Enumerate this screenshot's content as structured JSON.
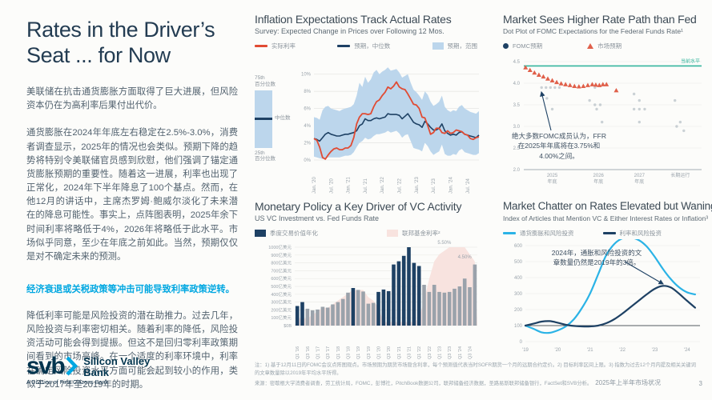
{
  "page": {
    "footer_label": "2025年上半年市场状况",
    "page_number": "3",
    "footnote1": "注：1) 基于12月11日的FOMC会议点阵图观点。市场预期为期货市场隐含利率，每个预测值代表当时SOFR期货一个月的远期合约定价。2) 目标利率区间上限。3) 指数为过去12个月内提及相关关键词的文章数量除以2019年平均水平所得。",
    "footnote2": "来源：密歇根大学消费者调查，劳工统计局，FOMC，彭博社，PitchBook数据公司，联邦储备经济数据，圣路易斯联邦储备银行，FactSet和SVB分析。"
  },
  "left": {
    "title_line1": "Rates in the Driver’s",
    "title_line2": "Seat ... for Now",
    "para1": "美联储在抗击通货膨胀方面取得了巨大进展，但风险资本仍在为高利率后果付出代价。",
    "para2": "通货膨胀在2024年年底左右稳定在2.5%-3.0%，消费者调查显示，2025年的情况也会类似。预期下降的趋势将特别令美联储官员感到欣慰，他们强调了锚定通货膨胀预期的重要性。随着这一进展，利率也出现了正常化，2024年下半年降息了100个基点。然而，在他12月的讲话中，主席杰罗姆·鲍威尔淡化了未来潜在的降息可能性。事实上，点阵图表明，2025年余下时间利率将略低于4%，2026年将略低于此水平。市场似乎同意，至少在年底之前如此。当然，预期仅仅是对不确定未来的预测。",
    "highlight": "经济衰退或关税政策等冲击可能导致利率政策逆转。",
    "para3": "降低利率可能是风险投资的潜在助推力。过去几年，风险投资与利率密切相关。随着利率的降低，风险投资活动可能会得到提振。但这不是回归零利率政策期间看到的市场高峰。在一个适度的利率环境中，利率在确定风险投资水平方面可能会起到较小的作用，类似于2017年至2019年的时期。",
    "logo": {
      "mark": "svb",
      "name_line1": "Silicon Valley",
      "name_line2": "Bank",
      "tagline": "A Division of First Citizens Bank"
    }
  },
  "chart_data": [
    {
      "type": "line",
      "title": "Inflation Expectations Track Actual Rates",
      "subtitle": "Survey: Expected Change in Prices over Following 12 Mos.",
      "legend": [
        {
          "label": "实际利率",
          "swatch": "line",
          "color": "#e14b33"
        },
        {
          "label": "预期，中位数",
          "swatch": "line",
          "color": "#1e4164"
        },
        {
          "label": "预期，范围",
          "swatch": "box",
          "color": "#bcd6ec"
        }
      ],
      "mini_legend": {
        "p75": "75th",
        "p75_sub": "百分位数",
        "median": "中位数",
        "p25": "25th",
        "p25_sub": "百分位数"
      },
      "ylabel_format": "percent",
      "yticks": [
        0,
        2,
        4,
        6,
        8,
        10
      ],
      "ylim": [
        0,
        11
      ],
      "xticks": [
        {
          "i": 0,
          "label": "Jan. '20"
        },
        {
          "i": 6,
          "label": "Jul. '20"
        },
        {
          "i": 12,
          "label": "Jan. '21"
        },
        {
          "i": 18,
          "label": "Jul. '21"
        },
        {
          "i": 24,
          "label": "Jan. '22"
        },
        {
          "i": 30,
          "label": "Jul. '22"
        },
        {
          "i": 36,
          "label": "Jan. '23"
        },
        {
          "i": 42,
          "label": "Jul. '23"
        },
        {
          "i": 48,
          "label": "Jan. '24"
        },
        {
          "i": 54,
          "label": "Jul. '24"
        }
      ],
      "actual": [
        2.5,
        2.3,
        1.5,
        0.3,
        0.1,
        0.6,
        1.0,
        1.3,
        1.4,
        1.2,
        1.2,
        1.4,
        1.4,
        1.7,
        2.6,
        4.2,
        5.0,
        5.4,
        5.4,
        5.3,
        5.4,
        6.2,
        6.8,
        7.0,
        7.5,
        7.9,
        8.5,
        8.3,
        8.6,
        9.1,
        8.5,
        8.3,
        8.2,
        7.7,
        7.1,
        6.5,
        6.4,
        6.0,
        5.0,
        4.9,
        4.0,
        3.0,
        3.2,
        3.7,
        3.7,
        3.2,
        3.1,
        3.4,
        3.1,
        3.2,
        3.5,
        3.4,
        3.3,
        3.0,
        2.9,
        2.5,
        2.4,
        2.6,
        2.7
      ],
      "median": [
        2.5,
        2.4,
        2.2,
        2.6,
        3.0,
        3.2,
        3.0,
        2.9,
        2.8,
        2.8,
        2.9,
        3.0,
        3.0,
        3.1,
        3.2,
        3.4,
        4.0,
        4.2,
        4.8,
        4.6,
        4.6,
        4.8,
        4.9,
        4.8,
        4.9,
        5.0,
        5.4,
        5.3,
        5.3,
        5.3,
        5.2,
        4.8,
        5.1,
        5.4,
        4.9,
        4.4,
        4.2,
        4.1,
        3.8,
        4.5,
        4.2,
        3.8,
        3.5,
        3.5,
        3.7,
        4.2,
        3.4,
        3.1,
        2.9,
        3.0,
        2.9,
        3.2,
        3.3,
        3.0,
        2.9,
        2.8,
        2.7,
        2.6,
        2.9
      ],
      "p75": [
        5.0,
        4.9,
        4.7,
        5.8,
        6.2,
        6.3,
        6.0,
        5.9,
        5.8,
        5.7,
        5.9,
        6.0,
        6.1,
        6.2,
        6.5,
        7.5,
        9.0,
        8.5,
        9.7,
        9.0,
        9.4,
        10.2,
        10.5,
        10.0,
        10.3,
        10.5,
        10.8,
        10.4,
        10.5,
        10.6,
        10.2,
        9.6,
        9.8,
        10.0,
        9.0,
        8.2,
        7.9,
        7.5,
        7.0,
        8.0,
        7.6,
        6.8,
        6.3,
        6.5,
        6.8,
        7.5,
        6.2,
        5.8,
        5.6,
        5.8,
        5.7,
        6.2,
        6.4,
        6.0,
        5.8,
        5.6,
        5.5,
        5.4,
        5.7
      ],
      "p25": [
        0.4,
        0.3,
        0.2,
        0.1,
        0.2,
        0.3,
        0.3,
        0.3,
        0.3,
        0.3,
        0.4,
        0.5,
        0.5,
        0.6,
        0.9,
        1.5,
        2.0,
        2.2,
        2.6,
        2.4,
        2.5,
        2.8,
        3.0,
        3.0,
        3.1,
        3.2,
        3.4,
        3.2,
        3.3,
        3.4,
        3.1,
        2.6,
        2.9,
        3.0,
        2.2,
        1.4,
        1.3,
        1.2,
        1.0,
        2.0,
        1.6,
        1.0,
        0.6,
        0.8,
        1.0,
        1.8,
        0.7,
        0.5,
        0.5,
        0.7,
        0.6,
        1.1,
        1.3,
        0.9,
        0.8,
        0.7,
        0.6,
        0.6,
        0.8
      ],
      "colors": {
        "actual": "#e14b33",
        "median": "#1e4164",
        "range": "#bcd6ec"
      }
    },
    {
      "type": "bar",
      "title": "Monetary Policy a Key Driver of VC Activity",
      "subtitle": "US VC Investment vs. Fed Funds Rate",
      "legend": [
        {
          "label": "季度交易价值年化",
          "swatch": "box",
          "color": "#1e4164"
        },
        {
          "label": "联邦基金利率²",
          "swatch": "box",
          "color": "#f8e3df"
        }
      ],
      "categories": [
        "Q1 '16",
        "Q2 '16",
        "Q3 '16",
        "Q4 '16",
        "Q1 '17",
        "Q2 '17",
        "Q3 '17",
        "Q4 '17",
        "Q1 '18",
        "Q2 '18",
        "Q3 '18",
        "Q4 '18",
        "Q1 '19",
        "Q2 '19",
        "Q3 '19",
        "Q4 '19",
        "Q1 '20",
        "Q2 '20",
        "Q3 '20",
        "Q4 '20",
        "Q1 '21",
        "Q2 '21",
        "Q3 '21",
        "Q4 '21",
        "Q1 '22",
        "Q2 '22",
        "Q3 '22",
        "Q4 '22",
        "Q1 '23",
        "Q2 '23",
        "Q3 '23",
        "Q4 '23",
        "Q1 '24",
        "Q2 '24",
        "Q3 '24",
        "Q4 '24"
      ],
      "values": [
        250,
        300,
        215,
        195,
        205,
        240,
        230,
        270,
        300,
        340,
        420,
        480,
        455,
        435,
        280,
        290,
        430,
        460,
        440,
        780,
        820,
        890,
        1000,
        800,
        760,
        520,
        430,
        520,
        430,
        420,
        430,
        470,
        500,
        600,
        490,
        780
      ],
      "highlight_indices": [
        0,
        1,
        11,
        16,
        17,
        18,
        19,
        20,
        21,
        22,
        23,
        24
      ],
      "fed_funds": [
        0.5,
        0.5,
        0.5,
        0.75,
        1.0,
        1.25,
        1.25,
        1.5,
        1.75,
        2.0,
        2.25,
        2.5,
        2.5,
        2.5,
        2.0,
        1.75,
        1.25,
        0.25,
        0.25,
        0.25,
        0.25,
        0.25,
        0.25,
        0.25,
        0.5,
        1.75,
        3.25,
        4.5,
        5.0,
        5.25,
        5.5,
        5.5,
        5.5,
        5.5,
        5.0,
        4.5
      ],
      "fed_ylim": [
        0,
        5.5
      ],
      "ylabels_bottom_to_top": [
        "$0B",
        "100亿美元",
        "200亿美元",
        "300亿美元",
        "400亿美元",
        "500亿美元",
        "600亿美元",
        "700亿美元",
        "800亿美元",
        "900亿美元",
        "1000亿美元"
      ],
      "ylim": [
        0,
        1000
      ],
      "xtick_every": 2,
      "annotations": [
        {
          "label": "5.50%",
          "i": 29,
          "v": 5.5
        },
        {
          "label": "4.50%",
          "i": 33,
          "v": 4.5
        }
      ],
      "colors": {
        "bar": "#9aa2ab",
        "bar_highlight": "#1e4164",
        "area": "#f8e3df"
      }
    },
    {
      "type": "scatter",
      "title": "Market Sees Higher Rate Path than Fed",
      "subtitle": "Dot Plot of FOMC Expectations for the Federal Funds Rate¹",
      "legend": [
        {
          "label": "FOMC预期",
          "swatch": "dot",
          "color": "#1e4164"
        },
        {
          "label": "市场预期",
          "swatch": "tri",
          "color": "#e0604a"
        }
      ],
      "yticks": [
        4.5,
        4.0,
        3.5,
        3.0,
        2.5,
        2.0
      ],
      "ylim": [
        2.0,
        4.5
      ],
      "current_level": {
        "value": 4.4,
        "label": "当前水平"
      },
      "xgroups": [
        {
          "x": 0.16,
          "line1": "2025",
          "line2": "年底"
        },
        {
          "x": 0.42,
          "line1": "2026",
          "line2": "年底"
        },
        {
          "x": 0.65,
          "line1": "2027",
          "line2": "年底"
        },
        {
          "x": 0.88,
          "line1": "长期运行",
          "line2": ""
        }
      ],
      "market": [
        [
          0.01,
          4.36
        ],
        [
          0.035,
          4.3
        ],
        [
          0.06,
          4.24
        ],
        [
          0.085,
          4.19
        ],
        [
          0.11,
          4.15
        ],
        [
          0.135,
          4.1
        ],
        [
          0.16,
          4.06
        ],
        [
          0.185,
          4.02
        ],
        [
          0.21,
          3.99
        ],
        [
          0.235,
          3.97
        ],
        [
          0.26,
          3.95
        ],
        [
          0.285,
          3.93
        ],
        [
          0.31,
          3.92
        ],
        [
          0.335,
          3.93
        ],
        [
          0.36,
          3.95
        ],
        [
          0.385,
          3.97
        ],
        [
          0.405,
          3.96
        ],
        [
          0.425,
          3.95
        ],
        [
          0.445,
          3.97
        ],
        [
          0.465,
          3.97
        ],
        [
          0.52,
          3.83
        ]
      ],
      "fomc_dots": [
        [
          0.1,
          3.9
        ],
        [
          0.125,
          3.9
        ],
        [
          0.15,
          3.9
        ],
        [
          0.175,
          3.9
        ],
        [
          0.2,
          3.9
        ],
        [
          0.13,
          3.65
        ],
        [
          0.16,
          3.4
        ],
        [
          0.4,
          3.9
        ],
        [
          0.37,
          3.6
        ],
        [
          0.4,
          3.5
        ],
        [
          0.43,
          3.5
        ],
        [
          0.41,
          3.4
        ],
        [
          0.44,
          3.1
        ],
        [
          0.62,
          3.75
        ],
        [
          0.65,
          3.6
        ],
        [
          0.62,
          3.4
        ],
        [
          0.65,
          3.4
        ],
        [
          0.68,
          3.4
        ],
        [
          0.65,
          3.1
        ],
        [
          0.85,
          3.6
        ],
        [
          0.88,
          3.1
        ],
        [
          0.86,
          3.0
        ],
        [
          0.9,
          2.9
        ]
      ],
      "annotation": "绝大多数FOMC成员认为，FFR在2025年年底将在3.75%和4.00%之间。",
      "colors": {
        "dot": "#a9b4bd",
        "triangle": "#e0604a",
        "current": "#35b59d"
      }
    },
    {
      "type": "line",
      "title": "Market Chatter on Rates Elevated but Waning",
      "subtitle": "Index of Articles that Mention VC & Either Interest Rates or Inflation³",
      "legend": [
        {
          "label": "通货膨胀和风险投资",
          "swatch": "line",
          "color": "#2bb3e6"
        },
        {
          "label": "利率和风险投资",
          "swatch": "line",
          "color": "#1e4164"
        }
      ],
      "yticks": [
        0,
        100,
        200,
        300,
        400,
        500,
        600
      ],
      "ylim": [
        0,
        600
      ],
      "baseline": 100,
      "x": [
        2019.0,
        2019.25,
        2019.5,
        2019.75,
        2020.0,
        2020.25,
        2020.5,
        2020.75,
        2021.0,
        2021.25,
        2021.5,
        2021.75,
        2022.0,
        2022.25,
        2022.5,
        2022.75,
        2023.0,
        2023.25,
        2023.5,
        2023.75,
        2024.0,
        2024.25
      ],
      "xticks": [
        {
          "x": 2019,
          "label": "'19"
        },
        {
          "x": 2020,
          "label": "'20"
        },
        {
          "x": 2021,
          "label": "'21"
        },
        {
          "x": 2022,
          "label": "'22"
        },
        {
          "x": 2023,
          "label": "'23"
        },
        {
          "x": 2024,
          "label": "'24"
        }
      ],
      "series": [
        {
          "name": "通货膨胀和风险投资",
          "color": "#2bb3e6",
          "values": [
            100,
            80,
            58,
            55,
            70,
            95,
            140,
            210,
            300,
            420,
            540,
            610,
            645,
            650,
            635,
            595,
            530,
            455,
            390,
            340,
            308,
            295
          ]
        },
        {
          "name": "利率和风险投资",
          "color": "#1e4164",
          "values": [
            100,
            112,
            125,
            128,
            118,
            105,
            98,
            95,
            95,
            100,
            115,
            140,
            175,
            215,
            255,
            295,
            330,
            348,
            338,
            300,
            255,
            212
          ]
        }
      ],
      "annotation": "2024年，通胀和风险投资的文章数量仍然是2019年的3倍。"
    }
  ]
}
